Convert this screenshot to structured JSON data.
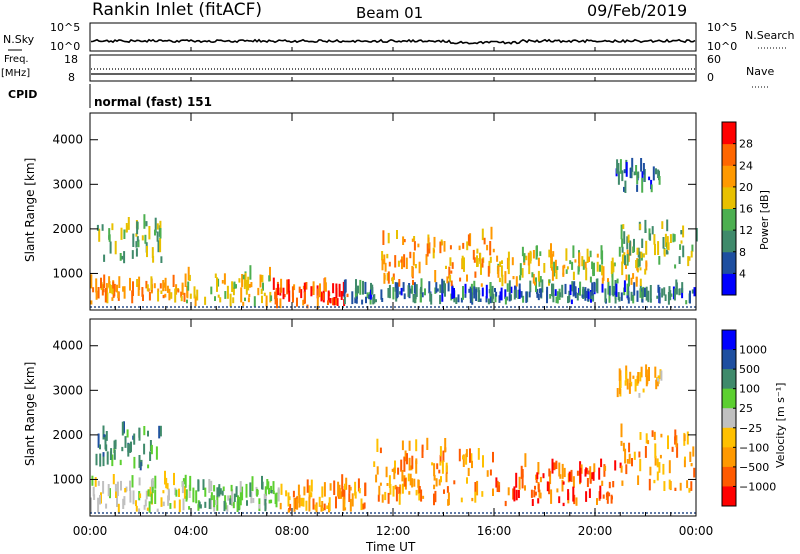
{
  "header": {
    "station": "Rankin Inlet (fitACF)",
    "beam": "Beam 01",
    "date": "09/Feb/2019"
  },
  "aux_panels": {
    "nsky_label": "N.Sky",
    "nsky_ticks": [
      "10^5",
      "10^0"
    ],
    "nsearch_label": "N.Search",
    "nsearch_ticks": [
      "10^5",
      "10^0"
    ],
    "freq_label_1": "Freq.",
    "freq_label_2": "[MHz]",
    "freq_ticks": [
      "18",
      "8"
    ],
    "nave_label": "Nave",
    "nave_ticks": [
      "60",
      "0"
    ],
    "cpid_label": "CPID",
    "cpid_value": "normal (fast) 151"
  },
  "colors": {
    "power": [
      "#0000ff",
      "#1e4fa0",
      "#3f8a6b",
      "#4caf50",
      "#e8c000",
      "#ff9900",
      "#ff6600",
      "#ff0000"
    ],
    "velocity": [
      "#ff0000",
      "#ff5a00",
      "#ff9900",
      "#ffc000",
      "#c0c0c0",
      "#5ccf30",
      "#3f8a6b",
      "#1e4fa0",
      "#0000ff"
    ]
  },
  "chart_data": [
    {
      "type": "heatmap",
      "panel": "power",
      "ylabel": "Slant Range [km]",
      "ylim": [
        180,
        4600
      ],
      "yticks": [
        "1000",
        "2000",
        "3000",
        "4000"
      ],
      "colorbar_label": "Power [dB]",
      "colorbar_ticks": [
        "4",
        "8",
        "12",
        "16",
        "20",
        "24",
        "28"
      ],
      "colorbar_range": [
        0,
        32
      ],
      "echo_regions": [
        {
          "t0": 0.0,
          "t1": 3.8,
          "r0": 300,
          "r1": 700,
          "level": 22
        },
        {
          "t0": 0.2,
          "t1": 2.8,
          "r0": 1200,
          "r1": 2100,
          "level": 14
        },
        {
          "t0": 3.8,
          "t1": 7.2,
          "r0": 250,
          "r1": 900,
          "level": 18
        },
        {
          "t0": 7.2,
          "t1": 10.2,
          "r0": 200,
          "r1": 650,
          "level": 26
        },
        {
          "t0": 10.0,
          "t1": 24.0,
          "r0": 300,
          "r1": 600,
          "level": 8
        },
        {
          "t0": 11.5,
          "t1": 16.0,
          "r0": 700,
          "r1": 1800,
          "level": 22
        },
        {
          "t0": 16.0,
          "t1": 22.0,
          "r0": 700,
          "r1": 1400,
          "level": 18
        },
        {
          "t0": 21.0,
          "t1": 24.0,
          "r0": 1100,
          "r1": 2000,
          "level": 14
        },
        {
          "t0": 20.8,
          "t1": 22.6,
          "r0": 2800,
          "r1": 3300,
          "level": 8
        }
      ]
    },
    {
      "type": "heatmap",
      "panel": "velocity",
      "xlabel": "Time UT",
      "xticks": [
        "00:00",
        "04:00",
        "08:00",
        "12:00",
        "16:00",
        "20:00",
        "00:00"
      ],
      "xlim": [
        0,
        24
      ],
      "ylabel": "Slant Range [km]",
      "ylim": [
        180,
        4600
      ],
      "yticks": [
        "1000",
        "2000",
        "3000",
        "4000"
      ],
      "colorbar_label": "Velocity [m s⁻¹]",
      "colorbar_ticks": [
        "1000",
        "500",
        "100",
        "25",
        "−25",
        "−100",
        "−500",
        "−1000"
      ],
      "echo_regions": [
        {
          "t0": 0.0,
          "t1": 3.8,
          "r0": 250,
          "r1": 900,
          "class": 4
        },
        {
          "t0": 0.2,
          "t1": 2.8,
          "r0": 1200,
          "r1": 2100,
          "class": 6
        },
        {
          "t0": 3.8,
          "t1": 7.5,
          "r0": 250,
          "r1": 800,
          "class": 5
        },
        {
          "t0": 7.5,
          "t1": 11.0,
          "r0": 250,
          "r1": 800,
          "class": 2
        },
        {
          "t0": 11.0,
          "t1": 16.0,
          "r0": 400,
          "r1": 1700,
          "class": 2
        },
        {
          "t0": 16.0,
          "t1": 21.0,
          "r0": 400,
          "r1": 1300,
          "class": 1
        },
        {
          "t0": 21.0,
          "t1": 24.0,
          "r0": 700,
          "r1": 2000,
          "class": 2
        },
        {
          "t0": 20.8,
          "t1": 22.6,
          "r0": 2800,
          "r1": 3300,
          "class": 3
        }
      ]
    }
  ]
}
